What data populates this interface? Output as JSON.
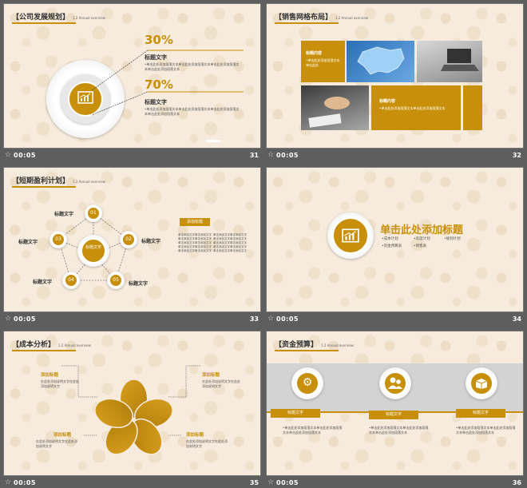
{
  "colors": {
    "accent": "#c8900a",
    "background": "#f6ebdc",
    "frame": "#5e5e5e"
  },
  "footers": [
    {
      "time": "00:05",
      "num": "31"
    },
    {
      "time": "00:05",
      "num": "32"
    },
    {
      "time": "00:05",
      "num": "33"
    },
    {
      "time": "00:05",
      "num": "34"
    },
    {
      "time": "00:05",
      "num": "35"
    },
    {
      "time": "00:05",
      "num": "36"
    }
  ],
  "s31": {
    "title": "【公司发展规划】",
    "subtitle": "1.2 Annual overview",
    "p1": "30%",
    "t1": "标题文字",
    "b1": "•单击此处添加段落文本单击此处添加段落文本单击此处添加段落文本单击此处添加段落文本",
    "p2": "70%",
    "t2": "标题文字",
    "b2": "•单击此处添加段落文本单击此处添加段落文本单击此处添加段落文本单击此处添加段落文本",
    "icon": "chart-icon"
  },
  "s32": {
    "title": "【销售网格布局】",
    "subtitle": "1.2 Annual overview",
    "box1_title": "标题内容",
    "box1_text": "•单击此处添加段落文本单击此处",
    "box2_title": "标题内容",
    "box2_text": "•单击此处添加段落文本单击此处添加段落文本"
  },
  "s33": {
    "title": "【短期盈利计划】",
    "subtitle": "1.2 Annual overview",
    "center": "标题文字",
    "nodes": [
      {
        "num": "01",
        "label": "标题文字"
      },
      {
        "num": "02",
        "label": "标题文字"
      },
      {
        "num": "03",
        "label": "标题文字"
      },
      {
        "num": "04",
        "label": "标题文字"
      },
      {
        "num": "05",
        "label": "标题文字"
      }
    ],
    "tag": "添加标题",
    "col1": "单击添加文字单击添加文字单击添加文字单击添加文字单击添加文字单击添加文字单击添加文字单击添加文字单击添加文字单击添加文字",
    "col2": "单击添加文字单击添加文字单击添加文字单击添加文字单击添加文字单击添加文字单击添加文字单击添加文字单击添加文字单击添加文字"
  },
  "s34": {
    "heading": "单击此处添加标题",
    "bullets": [
      "•成本计划",
      "•年度计划",
      "•规划计划",
      "•资金预算表",
      "•销售表"
    ]
  },
  "s35": {
    "title": "【成本分析】",
    "subtitle": "1.2 Annual overview",
    "labels": [
      {
        "tag": "添加标题",
        "text": "在此处添加说明文字在此处添加说明文字"
      },
      {
        "tag": "添加标题",
        "text": "在此处添加说明文字在此处添加说明文字"
      },
      {
        "tag": "添加标题",
        "text": "在此处添加说明文字在此处添加说明文字"
      },
      {
        "tag": "添加标题",
        "text": "在此处添加说明文字在此处添加说明文字"
      }
    ]
  },
  "s36": {
    "title": "【资金预算】",
    "subtitle": "1.2 Annual overview",
    "cards": [
      {
        "label": "标题文字",
        "text": "•单击此处添加段落文本单击此处添加段落文本单击此处添加段落文本",
        "icon": "gear-icon"
      },
      {
        "label": "标题文字",
        "text": "•单击此处添加段落文本单击此处添加段落文本单击此处添加段落文本",
        "icon": "people-icon"
      },
      {
        "label": "标题文字",
        "text": "•单击此处添加段落文本单击此处添加段落文本单击此处添加段落文本",
        "icon": "box-icon"
      }
    ]
  }
}
